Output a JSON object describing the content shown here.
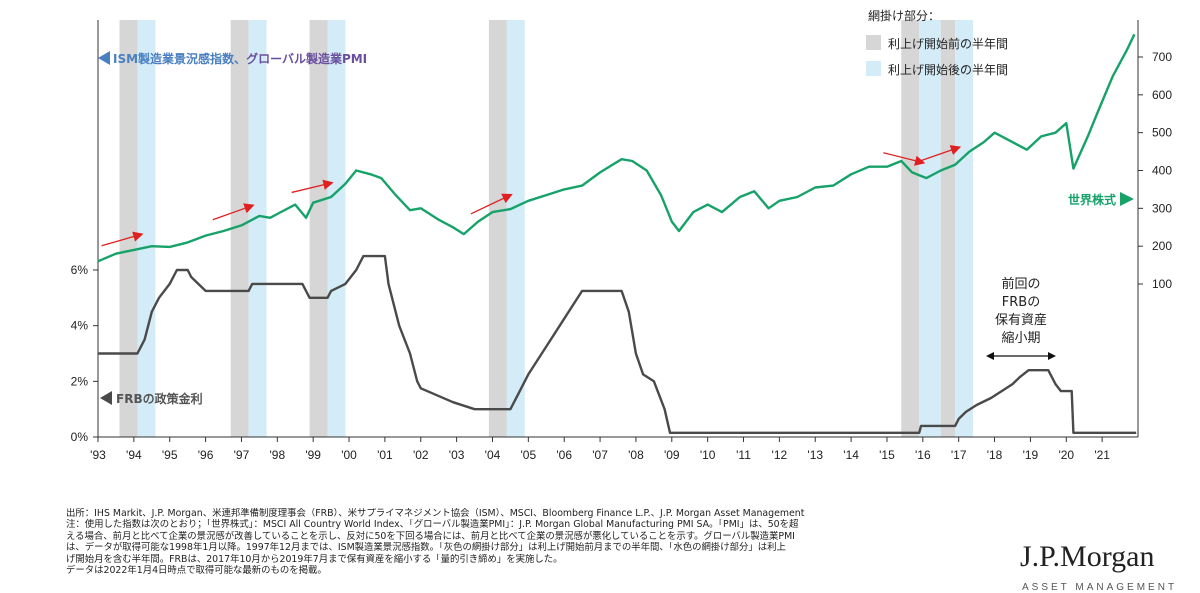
{
  "chart_data": {
    "type": "line",
    "labels": {
      "ism_pmi_prefix": "ISM製造業景況感指数、",
      "ism_pmi_suffix": "グローバル製造業PMI",
      "fed_rate": "FRBの政策金利",
      "world_equity": "世界株式",
      "legend_title": "網掛け部分：",
      "legend_gray": "利上げ開始前の半年間",
      "legend_blue": "利上げ開始後の半年間",
      "annotation": [
        "前回の",
        "FRBの",
        "保有資産",
        "縮小期"
      ]
    },
    "x_ticks": [
      "'93",
      "'94",
      "'95",
      "'96",
      "'97",
      "'98",
      "'99",
      "'00",
      "'01",
      "'02",
      "'03",
      "'04",
      "'05",
      "'06",
      "'07",
      "'08",
      "'09",
      "'10",
      "'11",
      "'12",
      "'13",
      "'14",
      "'15",
      "'16",
      "'17",
      "'18",
      "'19",
      "'20",
      "'21"
    ],
    "left_axis": {
      "ticks": [
        "0%",
        "2%",
        "4%",
        "6%"
      ],
      "range": [
        0,
        6.5
      ]
    },
    "right_axis": {
      "ticks": [
        "100",
        "200",
        "300",
        "400",
        "500",
        "600",
        "700"
      ],
      "range": [
        0,
        800
      ]
    },
    "shading": [
      {
        "gray": [
          1993.6,
          1994.1
        ],
        "blue": [
          1994.1,
          1994.6
        ]
      },
      {
        "gray": [
          1996.7,
          1997.2
        ],
        "blue": [
          1997.2,
          1997.7
        ]
      },
      {
        "gray": [
          1998.9,
          1999.4
        ],
        "blue": [
          1999.4,
          1999.9
        ]
      },
      {
        "gray": [
          2003.9,
          2004.4
        ],
        "blue": [
          2004.4,
          2004.9
        ]
      },
      {
        "gray": [
          2015.4,
          2015.9
        ],
        "blue": [
          2015.9,
          2016.5
        ]
      },
      {
        "gray": [
          2016.5,
          2016.9
        ],
        "blue": [
          2016.9,
          2017.4
        ]
      }
    ],
    "colors": {
      "equity": "#17a26a",
      "fed": "#4a4a4a",
      "gray_band": "#d6d6d6",
      "blue_band": "#d3ecf7",
      "arrow": "#e02020"
    },
    "series": [
      {
        "name": "世界株式",
        "axis": "right",
        "points": [
          [
            1993.0,
            160
          ],
          [
            1993.5,
            180
          ],
          [
            1994.0,
            190
          ],
          [
            1994.5,
            200
          ],
          [
            1995.0,
            198
          ],
          [
            1995.5,
            210
          ],
          [
            1996.0,
            228
          ],
          [
            1996.5,
            240
          ],
          [
            1997.0,
            255
          ],
          [
            1997.5,
            280
          ],
          [
            1997.8,
            275
          ],
          [
            1998.0,
            285
          ],
          [
            1998.5,
            310
          ],
          [
            1998.8,
            275
          ],
          [
            1999.0,
            315
          ],
          [
            1999.5,
            330
          ],
          [
            1999.9,
            365
          ],
          [
            2000.2,
            400
          ],
          [
            2000.6,
            390
          ],
          [
            2000.9,
            380
          ],
          [
            2001.3,
            335
          ],
          [
            2001.7,
            295
          ],
          [
            2002.0,
            300
          ],
          [
            2002.5,
            270
          ],
          [
            2002.9,
            250
          ],
          [
            2003.2,
            232
          ],
          [
            2003.6,
            265
          ],
          [
            2004.0,
            290
          ],
          [
            2004.5,
            298
          ],
          [
            2005.0,
            320
          ],
          [
            2005.5,
            335
          ],
          [
            2006.0,
            350
          ],
          [
            2006.5,
            360
          ],
          [
            2007.0,
            395
          ],
          [
            2007.6,
            430
          ],
          [
            2007.9,
            425
          ],
          [
            2008.3,
            400
          ],
          [
            2008.7,
            335
          ],
          [
            2009.0,
            265
          ],
          [
            2009.2,
            240
          ],
          [
            2009.6,
            290
          ],
          [
            2010.0,
            310
          ],
          [
            2010.4,
            290
          ],
          [
            2010.9,
            330
          ],
          [
            2011.3,
            345
          ],
          [
            2011.7,
            300
          ],
          [
            2012.0,
            320
          ],
          [
            2012.5,
            330
          ],
          [
            2013.0,
            355
          ],
          [
            2013.5,
            360
          ],
          [
            2014.0,
            390
          ],
          [
            2014.5,
            410
          ],
          [
            2015.0,
            410
          ],
          [
            2015.4,
            425
          ],
          [
            2015.7,
            395
          ],
          [
            2016.1,
            380
          ],
          [
            2016.5,
            400
          ],
          [
            2016.9,
            415
          ],
          [
            2017.3,
            450
          ],
          [
            2017.7,
            475
          ],
          [
            2018.0,
            500
          ],
          [
            2018.4,
            480
          ],
          [
            2018.9,
            455
          ],
          [
            2019.3,
            490
          ],
          [
            2019.7,
            500
          ],
          [
            2020.0,
            525
          ],
          [
            2020.2,
            405
          ],
          [
            2020.6,
            490
          ],
          [
            2020.9,
            560
          ],
          [
            2021.3,
            650
          ],
          [
            2021.7,
            720
          ],
          [
            2021.9,
            760
          ]
        ]
      },
      {
        "name": "FRBの政策金利",
        "axis": "left",
        "points": [
          [
            1993.0,
            3.0
          ],
          [
            1994.1,
            3.0
          ],
          [
            1994.3,
            3.5
          ],
          [
            1994.5,
            4.5
          ],
          [
            1994.7,
            5.0
          ],
          [
            1995.0,
            5.5
          ],
          [
            1995.2,
            6.0
          ],
          [
            1995.5,
            6.0
          ],
          [
            1995.6,
            5.75
          ],
          [
            1996.0,
            5.25
          ],
          [
            1997.2,
            5.25
          ],
          [
            1997.3,
            5.5
          ],
          [
            1998.7,
            5.5
          ],
          [
            1998.9,
            5.0
          ],
          [
            1999.4,
            5.0
          ],
          [
            1999.5,
            5.25
          ],
          [
            1999.9,
            5.5
          ],
          [
            2000.2,
            6.0
          ],
          [
            2000.4,
            6.5
          ],
          [
            2001.0,
            6.5
          ],
          [
            2001.1,
            5.5
          ],
          [
            2001.4,
            4.0
          ],
          [
            2001.7,
            3.0
          ],
          [
            2001.9,
            2.0
          ],
          [
            2002.0,
            1.75
          ],
          [
            2002.9,
            1.25
          ],
          [
            2003.5,
            1.0
          ],
          [
            2004.5,
            1.0
          ],
          [
            2004.7,
            1.5
          ],
          [
            2005.0,
            2.25
          ],
          [
            2005.5,
            3.25
          ],
          [
            2006.0,
            4.25
          ],
          [
            2006.5,
            5.25
          ],
          [
            2007.6,
            5.25
          ],
          [
            2007.8,
            4.5
          ],
          [
            2008.0,
            3.0
          ],
          [
            2008.2,
            2.25
          ],
          [
            2008.5,
            2.0
          ],
          [
            2008.8,
            1.0
          ],
          [
            2008.95,
            0.15
          ],
          [
            2015.9,
            0.15
          ],
          [
            2015.95,
            0.4
          ],
          [
            2016.9,
            0.4
          ],
          [
            2017.0,
            0.65
          ],
          [
            2017.2,
            0.9
          ],
          [
            2017.5,
            1.15
          ],
          [
            2017.9,
            1.4
          ],
          [
            2018.2,
            1.65
          ],
          [
            2018.5,
            1.9
          ],
          [
            2018.7,
            2.15
          ],
          [
            2018.95,
            2.4
          ],
          [
            2019.5,
            2.4
          ],
          [
            2019.6,
            2.15
          ],
          [
            2019.7,
            1.9
          ],
          [
            2019.85,
            1.65
          ],
          [
            2020.15,
            1.65
          ],
          [
            2020.2,
            0.15
          ],
          [
            2021.95,
            0.15
          ]
        ]
      }
    ]
  },
  "source_lines": [
    "出所：IHS Markit、J.P. Morgan、米連邦準備制度理事会（FRB）、米サプライマネジメント協会（ISM）、MSCI、Bloomberg Finance L.P.、J.P. Morgan Asset Management",
    "注：使用した指数は次のとおり；「世界株式」：MSCI All Country World Index、「グローバル製造業PMI」：J.P. Morgan Global Manufacturing PMI SA。「PMI」は、50を超",
    "える場合、前月と比べて企業の景況感が改善していることを示し、反対に50を下回る場合には、前月と比べて企業の景況感が悪化していることを示す。グローバル製造業PMI",
    "は、データが取得可能な1998年1月以降。1997年12月までは、ISM製造業景況感指数。「灰色の網掛け部分」は利上げ開始前月までの半年間、「水色の網掛け部分」は利上",
    "げ開始月を含む半年間。FRBは、2017年10月から2019年7月まで保有資産を縮小する「量的引き締め」を実施した。",
    "データは2022年1月4日時点で取得可能な最新のものを掲載。"
  ],
  "logo": {
    "name": "J.P.Morgan",
    "sub": "ASSET MANAGEMENT"
  }
}
